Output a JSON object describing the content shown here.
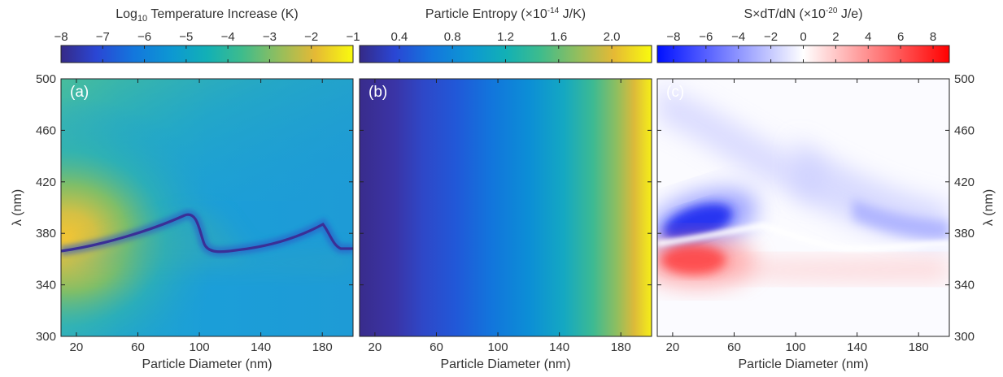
{
  "chart_data": [
    {
      "type": "heatmap",
      "panel_label": "(a)",
      "colorbar": {
        "title_main": "Log",
        "title_sub": "10",
        "title_rest": " Temperature Increase (K)",
        "colormap": "parula",
        "range": [
          -8,
          -1
        ],
        "ticks": [
          -8,
          -7,
          -6,
          -5,
          -4,
          -3,
          -2,
          -1
        ],
        "tick_labels": [
          "−8",
          "−7",
          "−6",
          "−5",
          "−4",
          "−3",
          "−2",
          "−1"
        ]
      },
      "xlabel": "Particle Diameter (nm)",
      "ylabel": "λ (nm)",
      "xlim": [
        10,
        200
      ],
      "ylim": [
        300,
        500
      ],
      "xticks": [
        20,
        60,
        100,
        140,
        180
      ],
      "yticks": [
        300,
        340,
        380,
        420,
        460,
        500
      ]
    },
    {
      "type": "heatmap",
      "panel_label": "(b)",
      "colorbar": {
        "title_main": "Particle Entropy (×10",
        "title_sup": "-14",
        "title_rest": " J/K)",
        "colormap": "parula",
        "range": [
          0.1,
          2.3
        ],
        "ticks": [
          0.4,
          0.8,
          1.2,
          1.6,
          2.0
        ],
        "tick_labels": [
          "0.4",
          "0.8",
          "1.2",
          "1.6",
          "2.0"
        ]
      },
      "xlabel": "Particle Diameter (nm)",
      "xlim": [
        10,
        200
      ],
      "ylim": [
        300,
        500
      ],
      "xticks": [
        20,
        60,
        100,
        140,
        180
      ]
    },
    {
      "type": "heatmap",
      "panel_label": "(c)",
      "colorbar": {
        "title_main": "S×dT/dN (×10",
        "title_sup": "-20",
        "title_rest": " J/e)",
        "colormap": "blue-white-red",
        "range": [
          -9,
          9
        ],
        "ticks": [
          -8,
          -6,
          -4,
          -2,
          0,
          2,
          4,
          6,
          8
        ],
        "tick_labels": [
          "−8",
          "−6",
          "−4",
          "−2",
          "0",
          "2",
          "4",
          "6",
          "8"
        ]
      },
      "xlabel": "Particle Diameter (nm)",
      "ylabel": "λ (nm)",
      "xlim": [
        10,
        200
      ],
      "ylim": [
        300,
        500
      ],
      "xticks": [
        20,
        60,
        100,
        140,
        180
      ],
      "yticks": [
        300,
        340,
        380,
        420,
        460,
        500
      ]
    }
  ]
}
